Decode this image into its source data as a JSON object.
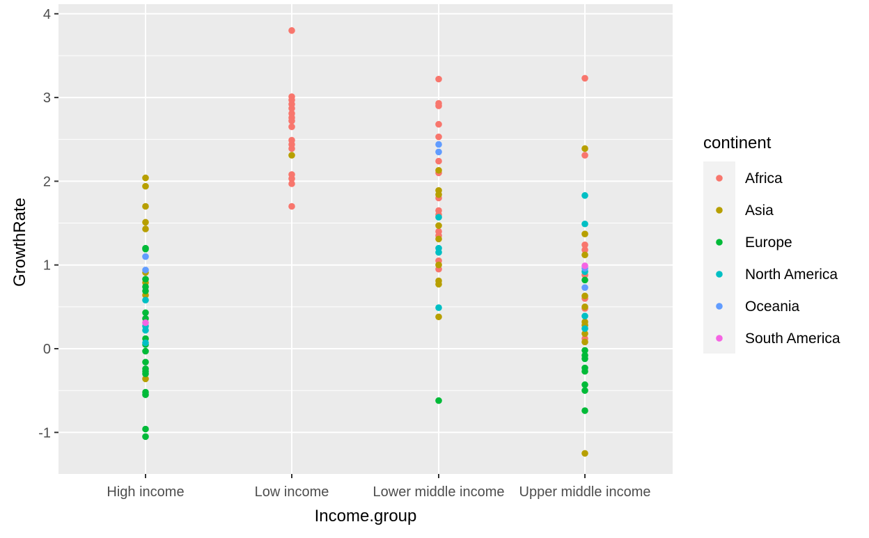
{
  "chart_data": {
    "type": "scatter",
    "title": "",
    "xlabel": "Income.group",
    "ylabel": "GrowthRate",
    "categories": [
      "High income",
      "Low income",
      "Lower middle income",
      "Upper middle income"
    ],
    "y_ticks": [
      "-1",
      "0",
      "1",
      "2",
      "3",
      "4"
    ],
    "ylim": [
      -1.5,
      4.0
    ],
    "grid": true,
    "legend": {
      "title": "continent",
      "position": "right",
      "entries": [
        {
          "name": "Africa",
          "color": "#F8766D"
        },
        {
          "name": "Asia",
          "color": "#B79F00"
        },
        {
          "name": "Europe",
          "color": "#00BA38"
        },
        {
          "name": "North America",
          "color": "#00BFC4"
        },
        {
          "name": "Oceania",
          "color": "#619CFF"
        },
        {
          "name": "South America",
          "color": "#F564E3"
        }
      ]
    },
    "series": [
      {
        "name": "Africa",
        "color": "#F8766D",
        "points": [
          {
            "x": "Low income",
            "y": 3.8
          },
          {
            "x": "Low income",
            "y": 3.01
          },
          {
            "x": "Low income",
            "y": 2.97
          },
          {
            "x": "Low income",
            "y": 2.92
          },
          {
            "x": "Low income",
            "y": 2.87
          },
          {
            "x": "Low income",
            "y": 2.81
          },
          {
            "x": "Low income",
            "y": 2.76
          },
          {
            "x": "Low income",
            "y": 2.72
          },
          {
            "x": "Low income",
            "y": 2.65
          },
          {
            "x": "Low income",
            "y": 2.49
          },
          {
            "x": "Low income",
            "y": 2.44
          },
          {
            "x": "Low income",
            "y": 2.39
          },
          {
            "x": "Low income",
            "y": 2.08
          },
          {
            "x": "Low income",
            "y": 2.03
          },
          {
            "x": "Low income",
            "y": 1.97
          },
          {
            "x": "Low income",
            "y": 1.7
          },
          {
            "x": "Lower middle income",
            "y": 3.22
          },
          {
            "x": "Lower middle income",
            "y": 2.93
          },
          {
            "x": "Lower middle income",
            "y": 2.9
          },
          {
            "x": "Lower middle income",
            "y": 2.68
          },
          {
            "x": "Lower middle income",
            "y": 2.53
          },
          {
            "x": "Lower middle income",
            "y": 2.24
          },
          {
            "x": "Lower middle income",
            "y": 2.1
          },
          {
            "x": "Lower middle income",
            "y": 1.8
          },
          {
            "x": "Lower middle income",
            "y": 1.65
          },
          {
            "x": "Lower middle income",
            "y": 1.6
          },
          {
            "x": "Lower middle income",
            "y": 1.4
          },
          {
            "x": "Lower middle income",
            "y": 1.35
          },
          {
            "x": "Lower middle income",
            "y": 1.05
          },
          {
            "x": "Lower middle income",
            "y": 0.95
          },
          {
            "x": "Upper middle income",
            "y": 3.23
          },
          {
            "x": "Upper middle income",
            "y": 2.31
          },
          {
            "x": "Upper middle income",
            "y": 1.24
          },
          {
            "x": "Upper middle income",
            "y": 1.18
          },
          {
            "x": "Upper middle income",
            "y": 0.88
          },
          {
            "x": "Upper middle income",
            "y": 0.6
          },
          {
            "x": "Upper middle income",
            "y": 0.48
          },
          {
            "x": "Upper middle income",
            "y": 0.12
          }
        ]
      },
      {
        "name": "Asia",
        "color": "#B79F00",
        "points": [
          {
            "x": "High income",
            "y": 2.04
          },
          {
            "x": "High income",
            "y": 1.94
          },
          {
            "x": "High income",
            "y": 1.7
          },
          {
            "x": "High income",
            "y": 1.51
          },
          {
            "x": "High income",
            "y": 1.43
          },
          {
            "x": "High income",
            "y": 0.91
          },
          {
            "x": "High income",
            "y": 0.79
          },
          {
            "x": "High income",
            "y": 0.64
          },
          {
            "x": "High income",
            "y": -0.36
          },
          {
            "x": "Low income",
            "y": 2.31
          },
          {
            "x": "Lower middle income",
            "y": 2.13
          },
          {
            "x": "Lower middle income",
            "y": 1.89
          },
          {
            "x": "Lower middle income",
            "y": 1.84
          },
          {
            "x": "Lower middle income",
            "y": 1.47
          },
          {
            "x": "Lower middle income",
            "y": 1.31
          },
          {
            "x": "Lower middle income",
            "y": 1.0
          },
          {
            "x": "Lower middle income",
            "y": 0.81
          },
          {
            "x": "Lower middle income",
            "y": 0.77
          },
          {
            "x": "Lower middle income",
            "y": 0.38
          },
          {
            "x": "Upper middle income",
            "y": 2.39
          },
          {
            "x": "Upper middle income",
            "y": 1.37
          },
          {
            "x": "Upper middle income",
            "y": 1.12
          },
          {
            "x": "Upper middle income",
            "y": 0.63
          },
          {
            "x": "Upper middle income",
            "y": 0.5
          },
          {
            "x": "Upper middle income",
            "y": 0.32
          },
          {
            "x": "Upper middle income",
            "y": 0.28
          },
          {
            "x": "Upper middle income",
            "y": 0.18
          },
          {
            "x": "Upper middle income",
            "y": 0.08
          },
          {
            "x": "Upper middle income",
            "y": -1.25
          }
        ]
      },
      {
        "name": "Europe",
        "color": "#00BA38",
        "points": [
          {
            "x": "High income",
            "y": 1.2
          },
          {
            "x": "High income",
            "y": 1.19
          },
          {
            "x": "High income",
            "y": 0.83
          },
          {
            "x": "High income",
            "y": 0.74
          },
          {
            "x": "High income",
            "y": 0.69
          },
          {
            "x": "High income",
            "y": 0.43
          },
          {
            "x": "High income",
            "y": 0.36
          },
          {
            "x": "High income",
            "y": 0.12
          },
          {
            "x": "High income",
            "y": 0.05
          },
          {
            "x": "High income",
            "y": -0.03
          },
          {
            "x": "High income",
            "y": -0.16
          },
          {
            "x": "High income",
            "y": -0.24
          },
          {
            "x": "High income",
            "y": -0.27
          },
          {
            "x": "High income",
            "y": -0.3
          },
          {
            "x": "High income",
            "y": -0.52
          },
          {
            "x": "High income",
            "y": -0.55
          },
          {
            "x": "High income",
            "y": -0.96
          },
          {
            "x": "High income",
            "y": -1.05
          },
          {
            "x": "Lower middle income",
            "y": -0.62
          },
          {
            "x": "Upper middle income",
            "y": 0.82
          },
          {
            "x": "Upper middle income",
            "y": -0.02
          },
          {
            "x": "Upper middle income",
            "y": -0.08
          },
          {
            "x": "Upper middle income",
            "y": -0.12
          },
          {
            "x": "Upper middle income",
            "y": -0.23
          },
          {
            "x": "Upper middle income",
            "y": -0.27
          },
          {
            "x": "Upper middle income",
            "y": -0.43
          },
          {
            "x": "Upper middle income",
            "y": -0.5
          },
          {
            "x": "Upper middle income",
            "y": -0.74
          }
        ]
      },
      {
        "name": "North America",
        "color": "#00BFC4",
        "points": [
          {
            "x": "High income",
            "y": 0.58
          },
          {
            "x": "High income",
            "y": 0.27
          },
          {
            "x": "High income",
            "y": 0.22
          },
          {
            "x": "High income",
            "y": 0.07
          },
          {
            "x": "Lower middle income",
            "y": 1.57
          },
          {
            "x": "Lower middle income",
            "y": 1.2
          },
          {
            "x": "Lower middle income",
            "y": 1.15
          },
          {
            "x": "Lower middle income",
            "y": 0.49
          },
          {
            "x": "Upper middle income",
            "y": 1.83
          },
          {
            "x": "Upper middle income",
            "y": 1.49
          },
          {
            "x": "Upper middle income",
            "y": 0.92
          },
          {
            "x": "Upper middle income",
            "y": 0.39
          },
          {
            "x": "Upper middle income",
            "y": 0.24
          }
        ]
      },
      {
        "name": "Oceania",
        "color": "#619CFF",
        "points": [
          {
            "x": "High income",
            "y": 1.1
          },
          {
            "x": "High income",
            "y": 0.94
          },
          {
            "x": "Lower middle income",
            "y": 2.44
          },
          {
            "x": "Lower middle income",
            "y": 2.35
          },
          {
            "x": "Upper middle income",
            "y": 0.96
          },
          {
            "x": "Upper middle income",
            "y": 0.73
          }
        ]
      },
      {
        "name": "South America",
        "color": "#F564E3",
        "points": [
          {
            "x": "High income",
            "y": 0.31
          },
          {
            "x": "Upper middle income",
            "y": 0.99
          }
        ]
      }
    ]
  }
}
